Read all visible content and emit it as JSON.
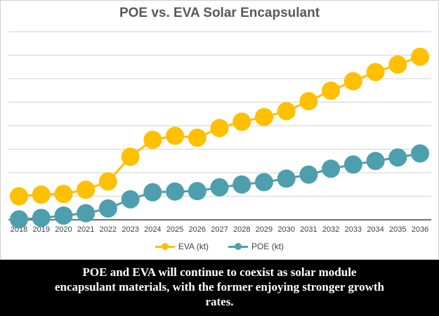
{
  "chart_data": {
    "type": "line",
    "title": "POE vs. EVA Solar Encapsulant",
    "xlabel": "",
    "ylabel": "",
    "categories": [
      "2018",
      "2019",
      "2020",
      "2021",
      "2022",
      "2023",
      "2024",
      "2025",
      "2026",
      "2027",
      "2028",
      "2029",
      "2030",
      "2031",
      "2032",
      "2033",
      "2034",
      "2035",
      "2036"
    ],
    "series": [
      {
        "name": "EVA (kt)",
        "color": "#FFC000",
        "values": [
          1.0,
          1.07,
          1.1,
          1.28,
          1.63,
          2.68,
          3.4,
          3.57,
          3.49,
          3.9,
          4.17,
          4.37,
          4.62,
          5.04,
          5.49,
          5.89,
          6.28,
          6.6,
          6.93
        ]
      },
      {
        "name": "POE (kt)",
        "color": "#4E9FAE",
        "values": [
          0.02,
          0.08,
          0.18,
          0.28,
          0.48,
          0.87,
          1.17,
          1.2,
          1.22,
          1.38,
          1.5,
          1.6,
          1.75,
          1.92,
          2.17,
          2.35,
          2.5,
          2.65,
          2.82
        ]
      }
    ],
    "ylim": [
      0,
      8
    ],
    "y_tick_labels_shown": false,
    "grid": true,
    "legend": "bottom"
  },
  "caption": "POE and EVA will continue to coexist as solar module encapsulant materials, with the former enjoying stronger growth rates."
}
